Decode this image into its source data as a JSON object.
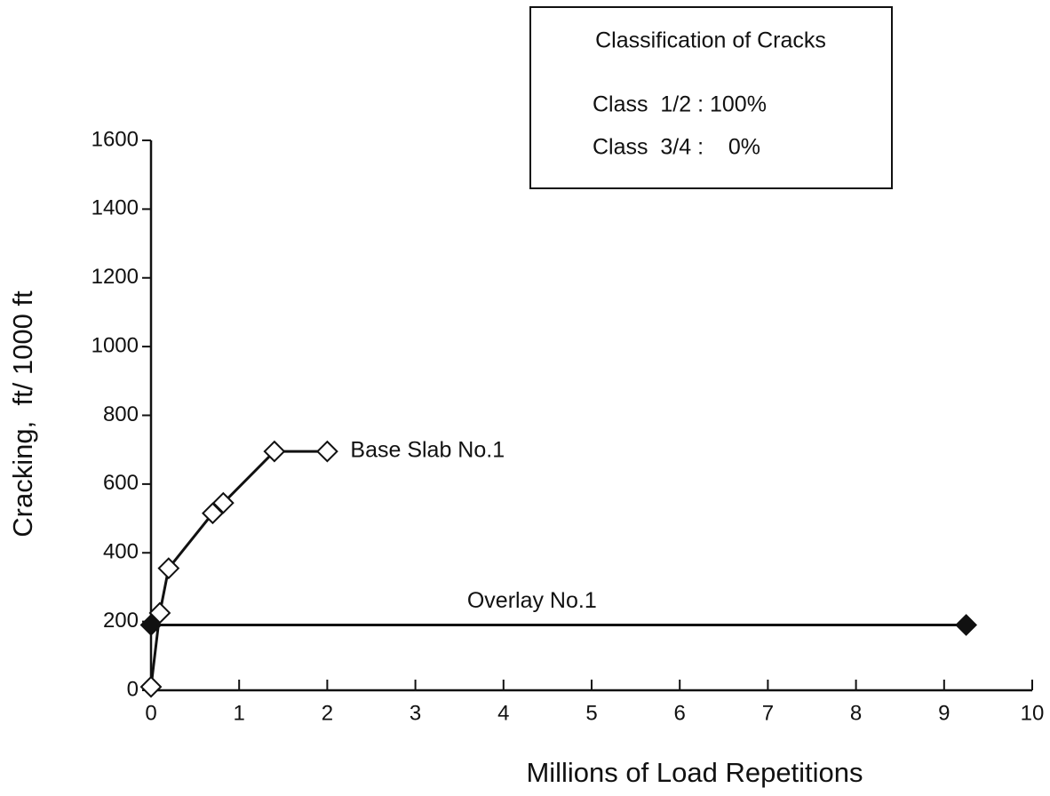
{
  "chart_data": {
    "type": "line",
    "x_label": "Millions of Load Repetitions",
    "y_label": "Cracking,  ft/ 1000 ft",
    "xlim": [
      0,
      10
    ],
    "ylim": [
      0,
      1600
    ],
    "xticks": [
      0,
      1,
      2,
      3,
      4,
      5,
      6,
      7,
      8,
      9,
      10
    ],
    "yticks": [
      0,
      200,
      400,
      600,
      800,
      1000,
      1200,
      1400,
      1600
    ],
    "series": [
      {
        "name": "Base Slab No.1",
        "color": "#111111",
        "marker": "open-diamond",
        "x": [
          0,
          0.1,
          0.2,
          0.7,
          0.82,
          1.4,
          2.0
        ],
        "values": [
          10,
          225,
          355,
          515,
          545,
          695,
          695
        ]
      },
      {
        "name": "Overlay No.1",
        "color": "#111111",
        "marker": "filled-diamond",
        "x": [
          0,
          9.25
        ],
        "values": [
          190,
          190
        ]
      }
    ],
    "legend_box": {
      "title": "Classification of Cracks",
      "lines": [
        "Class  1/2 : 100%",
        "Class  3/4 :    0%"
      ]
    }
  }
}
